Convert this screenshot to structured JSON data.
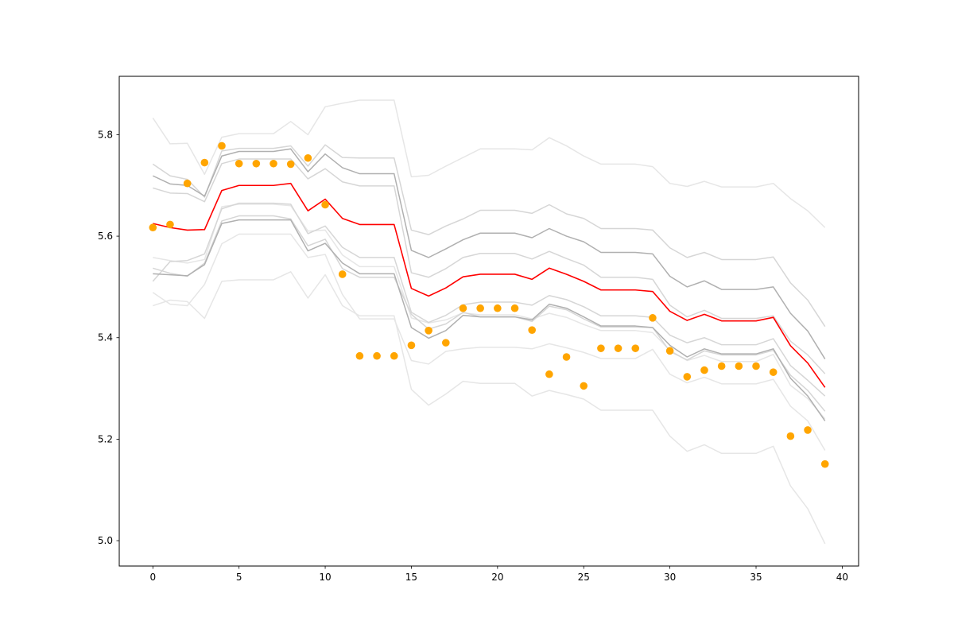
{
  "chart_data": {
    "type": "line",
    "title": "",
    "xlabel": "",
    "ylabel": "",
    "xlim": [
      -1.95,
      40.95
    ],
    "ylim": [
      4.95,
      5.915
    ],
    "xticks": [
      0,
      5,
      10,
      15,
      20,
      25,
      30,
      35,
      40
    ],
    "yticks": [
      5.0,
      5.2,
      5.4,
      5.6,
      5.8
    ],
    "grid": false,
    "x": [
      0,
      1,
      2,
      3,
      4,
      5,
      6,
      7,
      8,
      9,
      10,
      11,
      12,
      13,
      14,
      15,
      16,
      17,
      18,
      19,
      20,
      21,
      22,
      23,
      24,
      25,
      26,
      27,
      28,
      29,
      30,
      31,
      32,
      33,
      34,
      35,
      36,
      37,
      38,
      39
    ],
    "series": [
      {
        "role": "band",
        "color": "#e6e6e6",
        "values": [
          5.833,
          5.782,
          5.783,
          5.722,
          5.795,
          5.802,
          5.802,
          5.802,
          5.826,
          5.8,
          5.855,
          5.862,
          5.868,
          5.868,
          5.868,
          5.717,
          5.72,
          5.738,
          5.755,
          5.772,
          5.772,
          5.772,
          5.77,
          5.794,
          5.778,
          5.758,
          5.742,
          5.742,
          5.742,
          5.737,
          5.704,
          5.698,
          5.708,
          5.697,
          5.697,
          5.697,
          5.704,
          5.674,
          5.65,
          5.617
        ]
      },
      {
        "role": "band",
        "color": "#e6e6e6",
        "values": [
          5.463,
          5.474,
          5.471,
          5.438,
          5.511,
          5.514,
          5.514,
          5.514,
          5.53,
          5.478,
          5.524,
          5.463,
          5.443,
          5.443,
          5.443,
          5.298,
          5.267,
          5.289,
          5.314,
          5.31,
          5.31,
          5.31,
          5.285,
          5.296,
          5.288,
          5.279,
          5.257,
          5.257,
          5.257,
          5.257,
          5.206,
          5.176,
          5.189,
          5.172,
          5.172,
          5.172,
          5.186,
          5.108,
          5.063,
          4.994
        ]
      },
      {
        "role": "band",
        "color": "#e6e6e6",
        "values": [
          5.558,
          5.552,
          5.547,
          5.554,
          5.658,
          5.663,
          5.663,
          5.663,
          5.66,
          5.61,
          5.612,
          5.563,
          5.54,
          5.54,
          5.54,
          5.439,
          5.429,
          5.435,
          5.449,
          5.445,
          5.445,
          5.445,
          5.437,
          5.448,
          5.44,
          5.426,
          5.414,
          5.414,
          5.414,
          5.41,
          5.375,
          5.355,
          5.365,
          5.353,
          5.353,
          5.353,
          5.367,
          5.306,
          5.28,
          5.24
        ]
      },
      {
        "role": "band",
        "color": "#e6e6e6",
        "values": [
          5.489,
          5.466,
          5.463,
          5.505,
          5.585,
          5.604,
          5.604,
          5.604,
          5.604,
          5.558,
          5.564,
          5.485,
          5.437,
          5.437,
          5.437,
          5.355,
          5.348,
          5.373,
          5.378,
          5.381,
          5.381,
          5.381,
          5.378,
          5.388,
          5.38,
          5.371,
          5.359,
          5.359,
          5.359,
          5.377,
          5.328,
          5.311,
          5.322,
          5.309,
          5.309,
          5.309,
          5.318,
          5.265,
          5.236,
          5.178
        ]
      },
      {
        "role": "band",
        "color": "#d6d6d6",
        "values": [
          5.742,
          5.719,
          5.712,
          5.677,
          5.768,
          5.773,
          5.773,
          5.773,
          5.778,
          5.738,
          5.78,
          5.755,
          5.754,
          5.754,
          5.754,
          5.612,
          5.603,
          5.62,
          5.634,
          5.651,
          5.651,
          5.651,
          5.645,
          5.662,
          5.644,
          5.635,
          5.615,
          5.615,
          5.615,
          5.612,
          5.577,
          5.558,
          5.568,
          5.554,
          5.554,
          5.554,
          5.559,
          5.508,
          5.474,
          5.422
        ]
      },
      {
        "role": "band",
        "color": "#d6d6d6",
        "values": [
          5.537,
          5.527,
          5.521,
          5.547,
          5.63,
          5.64,
          5.64,
          5.64,
          5.634,
          5.581,
          5.594,
          5.536,
          5.519,
          5.519,
          5.519,
          5.446,
          5.417,
          5.427,
          5.45,
          5.441,
          5.441,
          5.441,
          5.432,
          5.462,
          5.455,
          5.437,
          5.421,
          5.421,
          5.421,
          5.42,
          5.373,
          5.356,
          5.374,
          5.366,
          5.366,
          5.366,
          5.375,
          5.326,
          5.296,
          5.255
        ]
      },
      {
        "role": "band",
        "color": "#d6d6d6",
        "values": [
          5.695,
          5.685,
          5.684,
          5.668,
          5.743,
          5.752,
          5.752,
          5.752,
          5.752,
          5.713,
          5.733,
          5.707,
          5.699,
          5.699,
          5.699,
          5.528,
          5.519,
          5.536,
          5.558,
          5.566,
          5.566,
          5.566,
          5.555,
          5.57,
          5.556,
          5.543,
          5.519,
          5.519,
          5.519,
          5.515,
          5.464,
          5.441,
          5.454,
          5.438,
          5.438,
          5.438,
          5.443,
          5.393,
          5.366,
          5.329
        ]
      },
      {
        "role": "band",
        "color": "#d6d6d6",
        "values": [
          5.511,
          5.55,
          5.552,
          5.565,
          5.654,
          5.665,
          5.665,
          5.665,
          5.663,
          5.605,
          5.62,
          5.578,
          5.558,
          5.558,
          5.558,
          5.45,
          5.43,
          5.444,
          5.465,
          5.47,
          5.47,
          5.47,
          5.464,
          5.483,
          5.475,
          5.461,
          5.443,
          5.443,
          5.443,
          5.44,
          5.405,
          5.39,
          5.4,
          5.386,
          5.386,
          5.386,
          5.398,
          5.345,
          5.316,
          5.285
        ]
      },
      {
        "role": "band",
        "color": "#b0b0b0",
        "values": [
          5.719,
          5.703,
          5.7,
          5.679,
          5.758,
          5.767,
          5.767,
          5.767,
          5.772,
          5.727,
          5.762,
          5.735,
          5.723,
          5.723,
          5.723,
          5.572,
          5.558,
          5.575,
          5.593,
          5.606,
          5.606,
          5.606,
          5.597,
          5.615,
          5.6,
          5.589,
          5.568,
          5.568,
          5.568,
          5.565,
          5.521,
          5.5,
          5.512,
          5.495,
          5.495,
          5.495,
          5.5,
          5.448,
          5.413,
          5.358
        ]
      },
      {
        "role": "band",
        "color": "#b0b0b0",
        "values": [
          5.526,
          5.524,
          5.522,
          5.544,
          5.625,
          5.632,
          5.632,
          5.632,
          5.632,
          5.571,
          5.586,
          5.547,
          5.526,
          5.526,
          5.526,
          5.42,
          5.399,
          5.414,
          5.444,
          5.441,
          5.441,
          5.441,
          5.435,
          5.466,
          5.458,
          5.441,
          5.423,
          5.423,
          5.423,
          5.42,
          5.385,
          5.362,
          5.378,
          5.368,
          5.368,
          5.368,
          5.378,
          5.32,
          5.285,
          5.236
        ]
      },
      {
        "role": "mean",
        "color": "#ff0000",
        "values": [
          5.625,
          5.617,
          5.612,
          5.613,
          5.69,
          5.7,
          5.7,
          5.7,
          5.704,
          5.65,
          5.673,
          5.635,
          5.623,
          5.623,
          5.623,
          5.497,
          5.482,
          5.498,
          5.52,
          5.525,
          5.525,
          5.525,
          5.515,
          5.537,
          5.525,
          5.511,
          5.494,
          5.494,
          5.494,
          5.491,
          5.452,
          5.434,
          5.446,
          5.433,
          5.433,
          5.433,
          5.44,
          5.384,
          5.35,
          5.302
        ]
      },
      {
        "role": "observed",
        "color": "#ffa500",
        "values": [
          5.617,
          5.623,
          5.704,
          5.745,
          5.778,
          5.743,
          5.743,
          5.743,
          5.742,
          5.754,
          5.662,
          5.525,
          5.364,
          5.364,
          5.364,
          5.385,
          5.414,
          5.39,
          5.458,
          5.458,
          5.458,
          5.458,
          5.415,
          5.328,
          5.362,
          5.305,
          5.379,
          5.379,
          5.379,
          5.439,
          5.374,
          5.323,
          5.336,
          5.344,
          5.344,
          5.344,
          5.332,
          5.206,
          5.218,
          5.151
        ]
      }
    ]
  }
}
